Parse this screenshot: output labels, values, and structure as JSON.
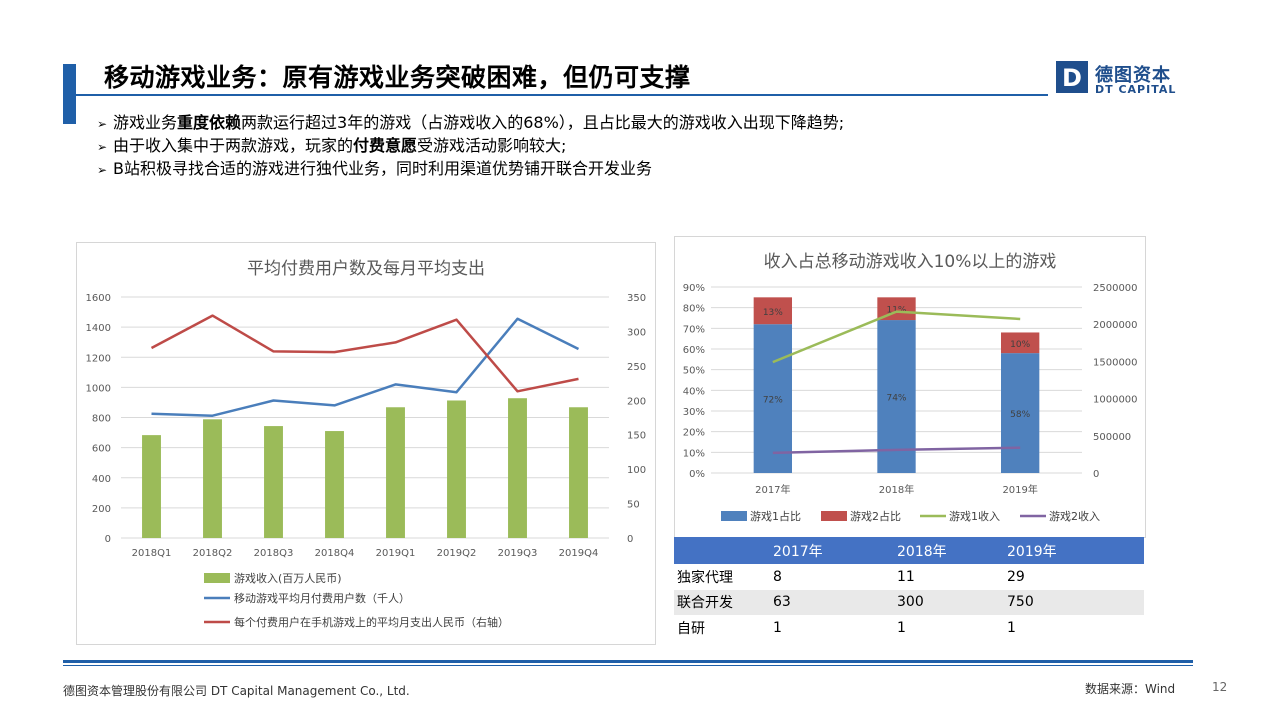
{
  "header": {
    "title": "移动游戏业务：原有游戏业务突破困难，但仍可支撑",
    "logo_cn": "德图资本",
    "logo_en": "DT CAPITAL",
    "logo_mark": "D",
    "brand_color": "#1f5fa8"
  },
  "bullets": [
    {
      "marker": "➢",
      "pre": "游戏业务",
      "bold": "重度依赖",
      "post": "两款运行超过3年的游戏（占游戏收入的68%），且占比最大的游戏收入出现下降趋势;"
    },
    {
      "marker": "➢",
      "pre": "由于收入集中于两款游戏，玩家的",
      "bold": "付费意愿",
      "post": "受游戏活动影响较大;"
    },
    {
      "marker": "➢",
      "pre": "B站积极寻找合适的游戏进行独代业务，同时利用渠道优势铺开联合开发业务",
      "bold": "",
      "post": ""
    }
  ],
  "chart_data": [
    {
      "type": "bar",
      "title": "平均付费用户数及每月平均支出",
      "categories": [
        "2018Q1",
        "2018Q2",
        "2018Q3",
        "2018Q4",
        "2019Q1",
        "2019Q2",
        "2019Q3",
        "2019Q4"
      ],
      "ylim": [
        0,
        1600
      ],
      "yticks": [
        "0",
        "200",
        "400",
        "600",
        "800",
        "1000",
        "1200",
        "1400",
        "1600"
      ],
      "y2lim": [
        0,
        350
      ],
      "y2ticks": [
        "0",
        "50",
        "100",
        "150",
        "200",
        "250",
        "300",
        "350"
      ],
      "series": [
        {
          "name": "游戏收入(百万人民币)",
          "kind": "bar",
          "axis": "left",
          "color": "#9bbb59",
          "values": [
            683,
            788,
            743,
            710,
            868,
            913,
            928,
            868
          ]
        },
        {
          "name": "移动游戏平均月付费用户数（千人）",
          "kind": "line",
          "axis": "left",
          "color": "#4a7ebb",
          "values": [
            825,
            812,
            913,
            880,
            1020,
            968,
            1455,
            1255
          ]
        },
        {
          "name": "每个付费用户在手机游戏上的平均月支出人民币（右轴）",
          "kind": "line",
          "axis": "right",
          "color": "#be4b48",
          "values": [
            276,
            323,
            271,
            270,
            284,
            317,
            213,
            231
          ]
        }
      ],
      "legend_position": "bottom",
      "grid": true
    },
    {
      "type": "bar",
      "title": "收入占总移动游戏收入10%以上的游戏",
      "categories": [
        "2017年",
        "2018年",
        "2019年"
      ],
      "ylim": [
        0,
        0.9
      ],
      "yticks": [
        "0%",
        "10%",
        "20%",
        "30%",
        "40%",
        "50%",
        "60%",
        "70%",
        "80%",
        "90%"
      ],
      "y2lim": [
        0,
        2500000
      ],
      "y2ticks": [
        "0",
        "500000",
        "1000000",
        "1500000",
        "2000000",
        "2500000"
      ],
      "series": [
        {
          "name": "游戏1占比",
          "kind": "stacked-bar",
          "axis": "left",
          "color": "#4f81bd",
          "values": [
            0.72,
            0.74,
            0.58
          ],
          "labels": [
            "72%",
            "74%",
            "58%"
          ]
        },
        {
          "name": "游戏2占比",
          "kind": "stacked-bar",
          "axis": "left",
          "color": "#c0504d",
          "values": [
            0.13,
            0.11,
            0.1
          ],
          "labels": [
            "13%",
            "11%",
            "10%"
          ]
        },
        {
          "name": "游戏1收入",
          "kind": "line",
          "axis": "right",
          "color": "#9bbb59",
          "values": [
            1490000,
            2170000,
            2070000
          ]
        },
        {
          "name": "游戏2收入",
          "kind": "line",
          "axis": "right",
          "color": "#8064a2",
          "values": [
            270000,
            310000,
            340000
          ]
        }
      ],
      "legend_position": "bottom",
      "grid": true
    }
  ],
  "table": {
    "header": [
      "",
      "2017年",
      "2018年",
      "2019年"
    ],
    "rows": [
      [
        "独家代理",
        "8",
        "11",
        "29"
      ],
      [
        "联合开发",
        "63",
        "300",
        "750"
      ],
      [
        "自研",
        "1",
        "1",
        "1"
      ]
    ],
    "header_color": "#4472c4"
  },
  "footer": {
    "company": "德图资本管理股份有限公司  DT Capital  Management  Co., Ltd.",
    "source": "数据来源：Wind",
    "page": "12"
  }
}
